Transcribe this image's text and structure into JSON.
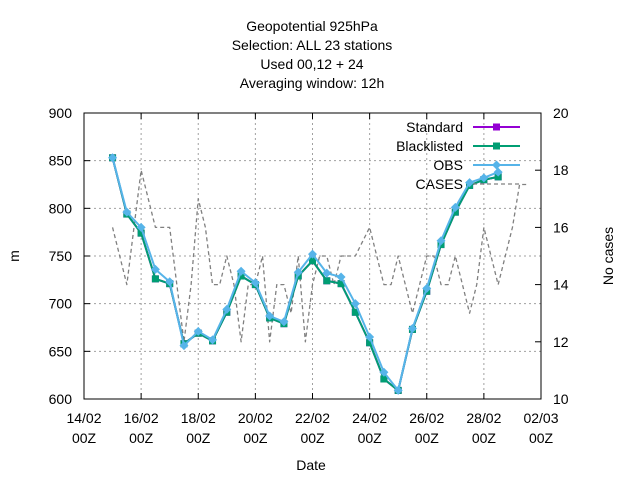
{
  "chart_data": {
    "type": "line",
    "title_lines": [
      "Geopotential 925hPa",
      "Selection: ALL      23 stations",
      "Used  00,12  + 24",
      "Averaging window: 12h"
    ],
    "xlabel": "Date",
    "ylabel": "m",
    "y2label": "No cases",
    "xlim": [
      0,
      16
    ],
    "ylim": [
      600,
      900
    ],
    "y2lim": [
      10,
      20
    ],
    "grid": true,
    "legend_position": "top-right",
    "x_ticks": [
      {
        "x": 0,
        "line1": "14/02",
        "line2": "00Z"
      },
      {
        "x": 2,
        "line1": "16/02",
        "line2": "00Z"
      },
      {
        "x": 4,
        "line1": "18/02",
        "line2": "00Z"
      },
      {
        "x": 6,
        "line1": "20/02",
        "line2": "00Z"
      },
      {
        "x": 8,
        "line1": "22/02",
        "line2": "00Z"
      },
      {
        "x": 10,
        "line1": "24/02",
        "line2": "00Z"
      },
      {
        "x": 12,
        "line1": "26/02",
        "line2": "00Z"
      },
      {
        "x": 14,
        "line1": "28/02",
        "line2": "00Z"
      },
      {
        "x": 16,
        "line1": "02/03",
        "line2": "00Z"
      }
    ],
    "y_ticks": [
      "600",
      "650",
      "700",
      "750",
      "800",
      "850",
      "900"
    ],
    "y2_ticks": [
      "10",
      "12",
      "14",
      "16",
      "18",
      "20"
    ],
    "x": [
      1.0,
      1.5,
      2.0,
      2.5,
      3.0,
      3.5,
      4.0,
      4.5,
      5.0,
      5.5,
      6.0,
      6.5,
      7.0,
      7.5,
      8.0,
      8.5,
      9.0,
      9.5,
      10.0,
      10.5,
      11.0,
      11.5,
      12.0,
      12.5,
      13.0,
      13.5,
      14.0,
      14.5
    ],
    "series": [
      {
        "name": "Standard",
        "color": "#9400d3",
        "marker": "square",
        "dash": "none",
        "values": [
          853,
          794,
          774,
          726,
          721,
          658,
          669,
          661,
          691,
          729,
          720,
          685,
          679,
          729,
          745,
          724,
          721,
          691,
          659,
          621,
          609,
          673,
          713,
          762,
          796,
          824,
          830,
          833
        ]
      },
      {
        "name": "Blacklisted",
        "color": "#009e73",
        "marker": "square",
        "dash": "none",
        "values": [
          853,
          794,
          774,
          726,
          721,
          658,
          669,
          661,
          691,
          729,
          720,
          685,
          679,
          729,
          745,
          724,
          721,
          691,
          659,
          621,
          609,
          673,
          713,
          762,
          796,
          824,
          830,
          833
        ]
      },
      {
        "name": "OBS",
        "color": "#56b4e9",
        "marker": "diamond",
        "dash": "none",
        "values": [
          853,
          796,
          780,
          736,
          723,
          656,
          671,
          662,
          694,
          734,
          722,
          687,
          681,
          733,
          752,
          732,
          728,
          700,
          665,
          628,
          609,
          674,
          716,
          766,
          801,
          827,
          832,
          838
        ]
      },
      {
        "name": "CASES",
        "color": "#808080",
        "marker": "none",
        "dash": "dashed",
        "axis": "y2",
        "x": [
          1.0,
          1.25,
          1.5,
          1.75,
          2.0,
          2.25,
          2.5,
          2.75,
          3.0,
          3.25,
          3.5,
          3.75,
          4.0,
          4.25,
          4.5,
          4.75,
          5.0,
          5.25,
          5.5,
          5.75,
          6.0,
          6.25,
          6.5,
          6.75,
          7.0,
          7.25,
          7.5,
          7.75,
          8.0,
          8.25,
          8.5,
          8.75,
          9.0,
          9.25,
          9.5,
          9.75,
          10.0,
          10.25,
          10.5,
          10.75,
          11.0,
          11.25,
          11.5,
          11.75,
          12.0,
          12.25,
          12.5,
          12.75,
          13.0,
          13.25,
          13.5,
          13.75,
          14.0,
          14.25,
          14.5,
          14.75,
          15.0,
          15.25,
          15.5
        ],
        "values": [
          16,
          15,
          14,
          16,
          18,
          17,
          16,
          16,
          16,
          14,
          12,
          14,
          17,
          16,
          14,
          14,
          15,
          14,
          12,
          14,
          14,
          15,
          12,
          14,
          14,
          13,
          15,
          12,
          14,
          15,
          15,
          14,
          15,
          15,
          15,
          15.5,
          16,
          15,
          14,
          14,
          15,
          14,
          13,
          14,
          15,
          15,
          14,
          14,
          15,
          14,
          13,
          14,
          16,
          15,
          14,
          15,
          16,
          17.5,
          17.5
        ]
      }
    ]
  }
}
